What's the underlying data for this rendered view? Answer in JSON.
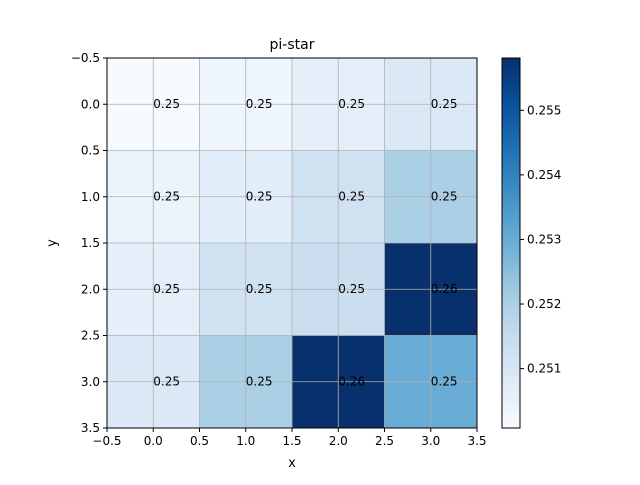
{
  "chart_data": {
    "type": "heatmap",
    "title": "pi-star",
    "xlabel": "x",
    "ylabel": "y",
    "xlim": [
      -0.5,
      3.5
    ],
    "ylim": [
      3.5,
      -0.5
    ],
    "y_inverted": true,
    "grid": true,
    "colormap": "Blues",
    "x_ticks": [
      "−0.5",
      "0.0",
      "0.5",
      "1.0",
      "1.5",
      "2.0",
      "2.5",
      "3.0",
      "3.5"
    ],
    "y_ticks": [
      "−0.5",
      "0.0",
      "0.5",
      "1.0",
      "1.5",
      "2.0",
      "2.5",
      "3.0",
      "3.5"
    ],
    "colorbar": {
      "min": 0.25008,
      "max": 0.25581,
      "ticks": [
        "0.251",
        "0.252",
        "0.253",
        "0.254",
        "0.255"
      ],
      "tick_values": [
        0.251,
        0.252,
        0.253,
        0.254,
        0.255
      ]
    },
    "values": [
      [
        0.2501,
        0.2503,
        0.2506,
        0.2509
      ],
      [
        0.2504,
        0.2507,
        0.2512,
        0.252
      ],
      [
        0.2506,
        0.2512,
        0.2514,
        0.2558
      ],
      [
        0.2509,
        0.252,
        0.2558,
        0.253
      ]
    ],
    "cell_labels": [
      [
        "0.25",
        "0.25",
        "0.25",
        "0.25"
      ],
      [
        "0.25",
        "0.25",
        "0.25",
        "0.25"
      ],
      [
        "0.25",
        "0.25",
        "0.25",
        "0.26"
      ],
      [
        "0.25",
        "0.25",
        "0.26",
        "0.25"
      ]
    ]
  }
}
